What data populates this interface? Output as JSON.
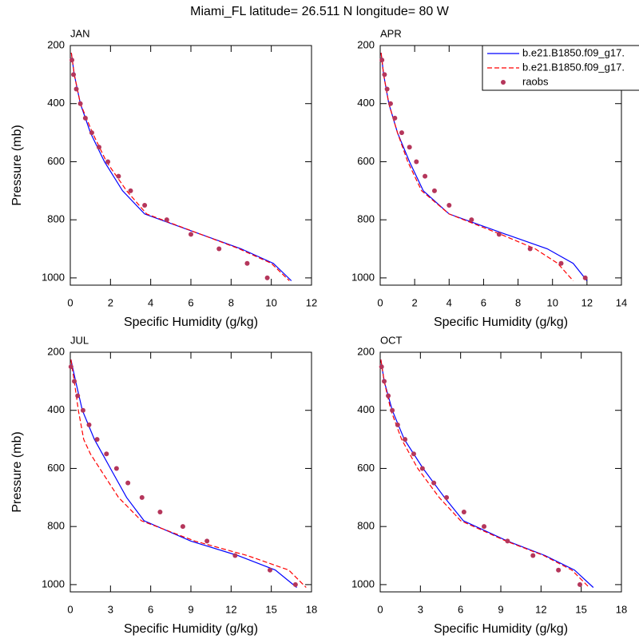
{
  "title": "Miami_FL  latitude= 26.511 N longitude= 80 W",
  "chart_data": [
    {
      "type": "line",
      "title": "JAN",
      "xlabel": "Specific Humidity (g/kg)",
      "ylabel": "Pressure (mb)",
      "xlim": [
        0,
        12
      ],
      "xticks": [
        0,
        2,
        4,
        6,
        8,
        10,
        12
      ],
      "ylim": [
        1025,
        200
      ],
      "yticks": [
        200,
        400,
        600,
        800,
        1000
      ],
      "series": [
        {
          "color": "#0000ff",
          "style": "solid",
          "y": [
            225,
            300,
            400,
            500,
            600,
            700,
            780,
            850,
            900,
            950,
            1010
          ],
          "x": [
            0.05,
            0.2,
            0.5,
            1.0,
            1.7,
            2.6,
            3.7,
            6.5,
            8.5,
            10.1,
            11.0
          ]
        },
        {
          "color": "#ff0000",
          "style": "dashed",
          "y": [
            225,
            300,
            400,
            500,
            600,
            700,
            780,
            850,
            900,
            950,
            1010
          ],
          "x": [
            0.05,
            0.2,
            0.5,
            1.1,
            1.8,
            2.8,
            3.8,
            6.5,
            8.4,
            10.0,
            10.9
          ]
        },
        {
          "color": "#b5365b",
          "style": "marker",
          "y": [
            250,
            300,
            350,
            400,
            450,
            500,
            550,
            600,
            650,
            700,
            750,
            800,
            850,
            900,
            950,
            1000
          ],
          "x": [
            0.08,
            0.16,
            0.3,
            0.5,
            0.75,
            1.07,
            1.43,
            1.87,
            2.4,
            3.0,
            3.7,
            4.8,
            6.0,
            7.4,
            8.8,
            9.8
          ]
        }
      ]
    },
    {
      "type": "line",
      "title": "APR",
      "xlabel": "Specific Humidity (g/kg)",
      "xlim": [
        0,
        14
      ],
      "xticks": [
        0,
        2,
        4,
        6,
        8,
        10,
        12,
        14
      ],
      "ylim": [
        1025,
        200
      ],
      "yticks": [
        200,
        400,
        600,
        800,
        1000
      ],
      "legend": "upper right",
      "series": [
        {
          "name": "b.e21.B1850.f09_g17.",
          "color": "#0000ff",
          "style": "solid",
          "y": [
            225,
            300,
            400,
            500,
            600,
            700,
            780,
            850,
            900,
            950,
            1010
          ],
          "x": [
            0.05,
            0.2,
            0.5,
            1.0,
            1.7,
            2.5,
            4.0,
            7.3,
            9.7,
            11.2,
            12.0
          ]
        },
        {
          "name": "b.e21.B1850.f09_g17.",
          "color": "#ff0000",
          "style": "dashed",
          "y": [
            225,
            300,
            400,
            500,
            600,
            700,
            780,
            850,
            900,
            950,
            1010
          ],
          "x": [
            0.05,
            0.2,
            0.5,
            1.0,
            1.6,
            2.4,
            4.0,
            7.0,
            9.0,
            10.3,
            11.2
          ]
        },
        {
          "name": "raobs",
          "color": "#b5365b",
          "style": "marker",
          "y": [
            250,
            300,
            350,
            400,
            450,
            500,
            550,
            600,
            650,
            700,
            750,
            800,
            850,
            900,
            950,
            1000
          ],
          "x": [
            0.1,
            0.25,
            0.4,
            0.6,
            0.85,
            1.25,
            1.7,
            2.1,
            2.6,
            3.15,
            4.0,
            5.3,
            6.9,
            8.7,
            10.5,
            11.9
          ]
        }
      ]
    },
    {
      "type": "line",
      "title": "JUL",
      "xlabel": "Specific Humidity (g/kg)",
      "ylabel": "Pressure (mb)",
      "xlim": [
        0,
        18
      ],
      "xticks": [
        0,
        3,
        6,
        9,
        12,
        15,
        18
      ],
      "ylim": [
        1025,
        200
      ],
      "yticks": [
        200,
        400,
        600,
        800,
        1000
      ],
      "series": [
        {
          "color": "#0000ff",
          "style": "solid",
          "y": [
            225,
            300,
            400,
            500,
            600,
            700,
            780,
            850,
            900,
            950,
            1010
          ],
          "x": [
            0.05,
            0.4,
            0.9,
            1.8,
            3.0,
            4.2,
            5.5,
            9.0,
            12.5,
            15.3,
            16.9
          ]
        },
        {
          "color": "#ff0000",
          "style": "dashed",
          "y": [
            225,
            300,
            400,
            500,
            550,
            600,
            700,
            780,
            850,
            900,
            950,
            1010
          ],
          "x": [
            0.05,
            0.3,
            0.6,
            1.0,
            1.5,
            2.2,
            3.6,
            5.3,
            9.3,
            13.2,
            16.3,
            17.6
          ]
        },
        {
          "color": "#b5365b",
          "style": "marker",
          "y": [
            250,
            300,
            350,
            400,
            450,
            500,
            550,
            600,
            650,
            700,
            750,
            800,
            850,
            900,
            950,
            1000
          ],
          "x": [
            0.05,
            0.3,
            0.55,
            0.95,
            1.4,
            2.0,
            2.7,
            3.45,
            4.3,
            5.35,
            6.7,
            8.4,
            10.2,
            12.3,
            14.9,
            16.8
          ]
        }
      ]
    },
    {
      "type": "line",
      "title": "OCT",
      "xlabel": "Specific Humidity (g/kg)",
      "xlim": [
        0,
        18
      ],
      "xticks": [
        0,
        3,
        6,
        9,
        12,
        15,
        18
      ],
      "ylim": [
        1025,
        200
      ],
      "yticks": [
        200,
        400,
        600,
        800,
        1000
      ],
      "series": [
        {
          "color": "#0000ff",
          "style": "solid",
          "y": [
            225,
            300,
            400,
            500,
            600,
            700,
            780,
            850,
            900,
            950,
            1010
          ],
          "x": [
            0.05,
            0.3,
            0.9,
            1.8,
            3.2,
            4.8,
            6.2,
            9.5,
            12.3,
            14.5,
            15.9
          ]
        },
        {
          "color": "#ff0000",
          "style": "dashed",
          "y": [
            225,
            300,
            400,
            500,
            600,
            700,
            780,
            850,
            900,
            950,
            1010
          ],
          "x": [
            0.05,
            0.3,
            0.8,
            1.6,
            2.8,
            4.4,
            6.0,
            9.4,
            12.2,
            14.3,
            15.6
          ]
        },
        {
          "color": "#b5365b",
          "style": "marker",
          "y": [
            250,
            300,
            350,
            400,
            450,
            500,
            550,
            600,
            650,
            700,
            750,
            800,
            850,
            900,
            950,
            1000
          ],
          "x": [
            0.1,
            0.3,
            0.6,
            0.9,
            1.3,
            1.85,
            2.5,
            3.15,
            4.0,
            4.95,
            6.25,
            7.75,
            9.5,
            11.4,
            13.3,
            14.9
          ]
        }
      ]
    }
  ]
}
